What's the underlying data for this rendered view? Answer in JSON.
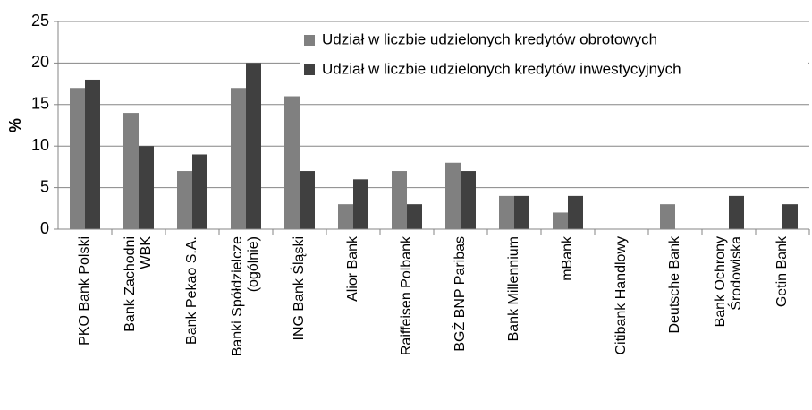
{
  "chart_data": {
    "type": "bar",
    "ylabel": "%",
    "categories": [
      "PKO Bank Polski",
      "Bank Zachodni\nWBK",
      "Bank Pekao S.A.",
      "Banki Spółdzielcze\n(ogólnie)",
      "ING Bank Śląski",
      "Alior Bank",
      "Raiffeisen Polbank",
      "BGŻ BNP Paribas",
      "Bank Millennium",
      "mBank",
      "Citibank Handlowy",
      "Deutsche Bank",
      "Bank Ochrony\nŚrodowiska",
      "Getin Bank"
    ],
    "series": [
      {
        "name": "Udział w liczbie udzielonych kredytów obrotowych",
        "color": "#808080",
        "values": [
          17,
          14,
          7,
          17,
          16,
          3,
          7,
          8,
          4,
          2,
          0,
          3,
          0,
          0
        ]
      },
      {
        "name": "Udział w liczbie udzielonych kredytów inwestycyjnych",
        "color": "#404040",
        "values": [
          18,
          10,
          9,
          20,
          7,
          6,
          3,
          7,
          4,
          4,
          0,
          0,
          4,
          3
        ]
      }
    ],
    "ylim": [
      0,
      25
    ],
    "yticks": [
      0,
      5,
      10,
      15,
      20,
      25
    ],
    "grid": true,
    "legend": "top-right"
  }
}
